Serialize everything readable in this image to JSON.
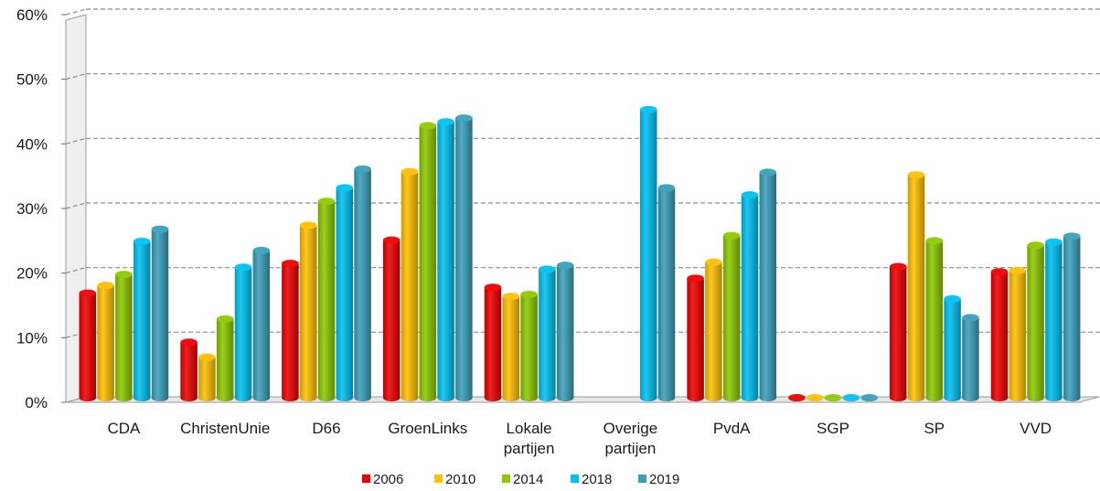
{
  "chart_data": {
    "type": "bar",
    "categories": [
      "CDA",
      "ChristenUnie",
      "D66",
      "GroenLinks",
      "Lokale partijen",
      "Overige partijen",
      "PvdA",
      "SGP",
      "SP",
      "VVD"
    ],
    "series": [
      {
        "name": "2006",
        "color": "#ee0000",
        "values": [
          16.9,
          9.3,
          21.5,
          25.1,
          17.8,
          null,
          19.2,
          0.1,
          21.0,
          20.2
        ]
      },
      {
        "name": "2010",
        "color": "#ffc000",
        "values": [
          18.1,
          7.0,
          27.4,
          35.7,
          16.4,
          null,
          21.7,
          0.1,
          35.2,
          20.4
        ]
      },
      {
        "name": "2014",
        "color": "#8dc800",
        "values": [
          19.8,
          12.9,
          31.1,
          42.8,
          16.7,
          null,
          25.8,
          0.1,
          25.0,
          24.3
        ]
      },
      {
        "name": "2018",
        "color": "#00c0f0",
        "values": [
          24.9,
          20.9,
          33.2,
          43.4,
          20.6,
          45.3,
          32.1,
          0.1,
          16.0,
          24.8
        ]
      },
      {
        "name": "2019",
        "color": "#3a9fba",
        "values": [
          26.8,
          23.5,
          36.1,
          44.0,
          21.2,
          33.2,
          35.6,
          0.1,
          13.1,
          25.7
        ]
      }
    ],
    "yticks": [
      "0%",
      "10%",
      "20%",
      "30%",
      "40%",
      "50%",
      "60%"
    ],
    "ylim": [
      0,
      60
    ],
    "grid": true,
    "legend_position": "bottom",
    "title": "",
    "xlabel": "",
    "ylabel": ""
  }
}
